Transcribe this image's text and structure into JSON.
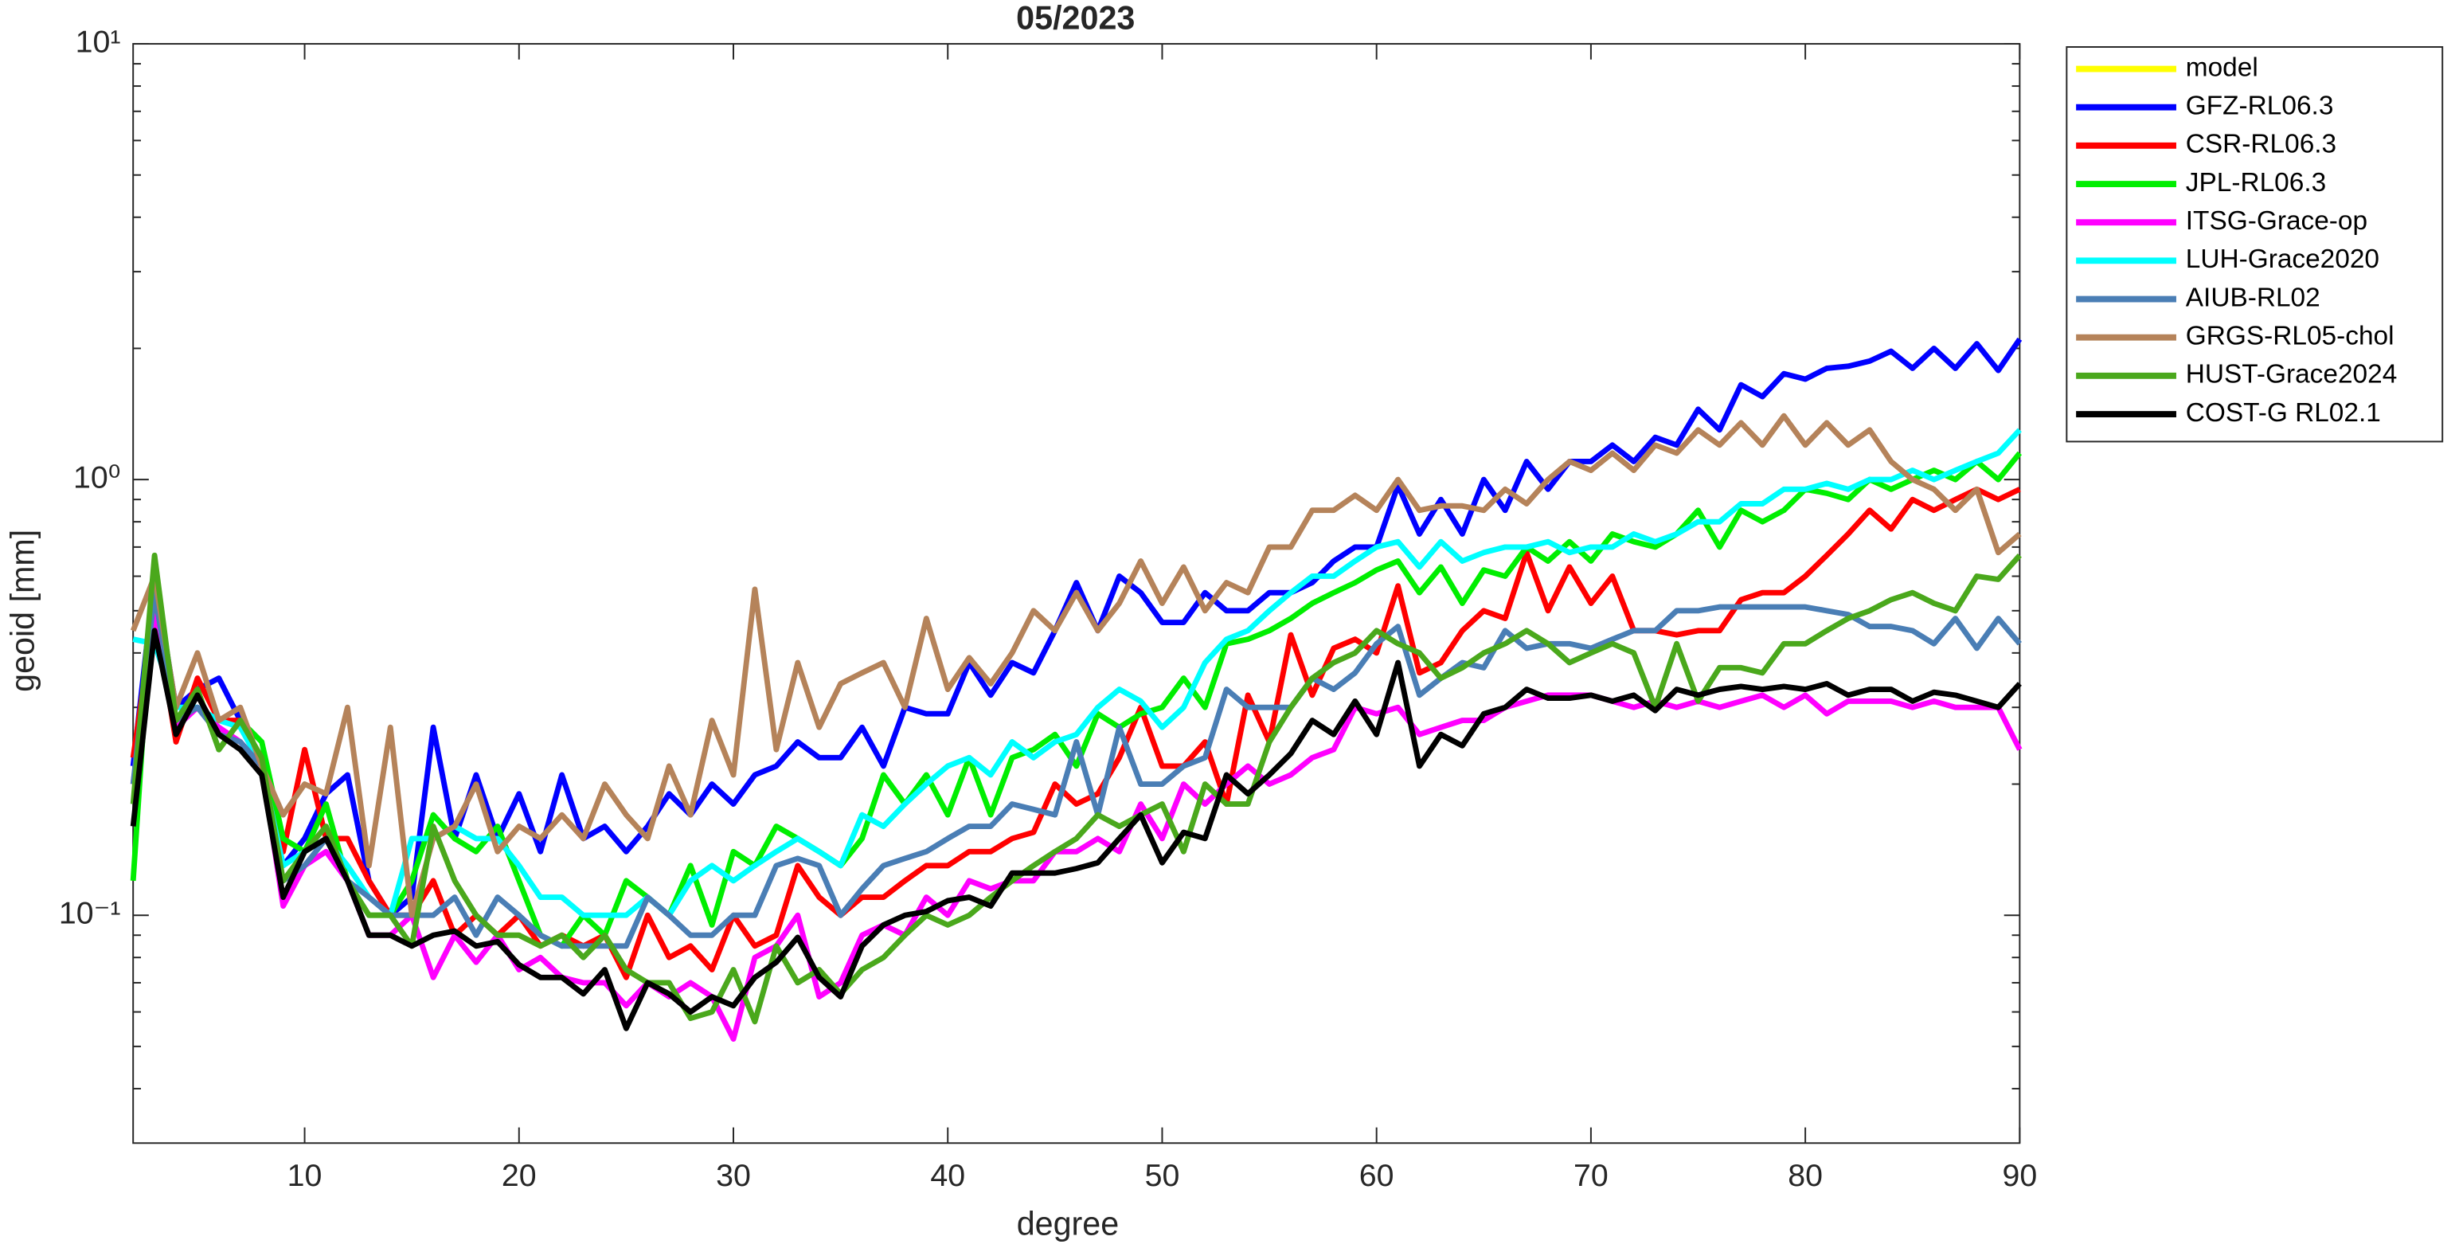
{
  "chart_data": {
    "type": "line",
    "title": "05/2023",
    "xlabel": "degree",
    "ylabel": "geoid [mm]",
    "x": [
      2,
      3,
      4,
      5,
      6,
      7,
      8,
      9,
      10,
      11,
      12,
      13,
      14,
      15,
      16,
      17,
      18,
      19,
      20,
      21,
      22,
      23,
      24,
      25,
      26,
      27,
      28,
      29,
      30,
      31,
      32,
      33,
      34,
      35,
      36,
      37,
      38,
      39,
      40,
      41,
      42,
      43,
      44,
      45,
      46,
      47,
      48,
      49,
      50,
      51,
      52,
      53,
      54,
      55,
      56,
      57,
      58,
      59,
      60,
      61,
      62,
      63,
      64,
      65,
      66,
      67,
      68,
      69,
      70,
      71,
      72,
      73,
      74,
      75,
      76,
      77,
      78,
      79,
      80,
      81,
      82,
      83,
      84,
      85,
      86,
      87,
      88,
      89,
      90
    ],
    "xlim": [
      2,
      90
    ],
    "xticks": [
      10,
      20,
      30,
      40,
      50,
      60,
      70,
      80,
      90
    ],
    "ylim": [
      0.03,
      10
    ],
    "log_y": true,
    "yticks": [
      {
        "value": 0.1,
        "label": "10⁻¹"
      },
      {
        "value": 1,
        "label": "10⁰"
      },
      {
        "value": 10,
        "label": "10¹"
      }
    ],
    "yminorticks": [
      0.04,
      0.05,
      0.06,
      0.07,
      0.08,
      0.09,
      0.2,
      0.3,
      0.4,
      0.5,
      0.6,
      0.7,
      0.8,
      0.9,
      2,
      3,
      4,
      5,
      6,
      7,
      8,
      9
    ],
    "legend": "outside-right",
    "series": [
      {
        "name": "model",
        "color": "#ffff00",
        "values": [
          null,
          null,
          null,
          null,
          null,
          null,
          null,
          null,
          null,
          null,
          null,
          null,
          null,
          null,
          null,
          null,
          null,
          null,
          null,
          null,
          null,
          null,
          null,
          null,
          null,
          null,
          null,
          null,
          null,
          null,
          null,
          null,
          null,
          null,
          null,
          null,
          null,
          null,
          null,
          null,
          null,
          null,
          null,
          null,
          null,
          null,
          null,
          null,
          null,
          null,
          null,
          null,
          null,
          null,
          null,
          null,
          null,
          null,
          null,
          null,
          null,
          null,
          null,
          null,
          null,
          null,
          null,
          null,
          null,
          null,
          null,
          null,
          null,
          null,
          null,
          null,
          null,
          null,
          null,
          null,
          null,
          null,
          null,
          null,
          null,
          null,
          null,
          null,
          null
        ]
      },
      {
        "name": "GFZ-RL06.3",
        "color": "#0000ff",
        "values": [
          0.22,
          0.6,
          0.3,
          0.33,
          0.35,
          0.28,
          0.22,
          0.13,
          0.15,
          0.19,
          0.21,
          0.12,
          0.1,
          0.11,
          0.27,
          0.15,
          0.21,
          0.15,
          0.19,
          0.14,
          0.21,
          0.15,
          0.16,
          0.14,
          0.16,
          0.19,
          0.17,
          0.2,
          0.18,
          0.21,
          0.22,
          0.25,
          0.23,
          0.23,
          0.27,
          0.22,
          0.3,
          0.29,
          0.29,
          0.38,
          0.32,
          0.38,
          0.36,
          0.45,
          0.58,
          0.45,
          0.6,
          0.55,
          0.47,
          0.47,
          0.55,
          0.5,
          0.5,
          0.55,
          0.55,
          0.58,
          0.65,
          0.7,
          0.7,
          0.97,
          0.75,
          0.9,
          0.75,
          1.0,
          0.85,
          1.1,
          0.95,
          1.1,
          1.1,
          1.2,
          1.1,
          1.25,
          1.2,
          1.45,
          1.3,
          1.65,
          1.55,
          1.75,
          1.7,
          1.8,
          1.82,
          1.87,
          1.97,
          1.8,
          2.0,
          1.8,
          2.05,
          1.78,
          2.1
        ]
      },
      {
        "name": "CSR-RL06.3",
        "color": "#ff0000",
        "values": [
          0.23,
          0.5,
          0.25,
          0.35,
          0.28,
          0.28,
          0.22,
          0.14,
          0.24,
          0.15,
          0.15,
          0.12,
          0.1,
          0.1,
          0.12,
          0.09,
          0.1,
          0.09,
          0.1,
          0.085,
          0.09,
          0.085,
          0.09,
          0.072,
          0.1,
          0.08,
          0.085,
          0.075,
          0.1,
          0.085,
          0.09,
          0.13,
          0.11,
          0.1,
          0.11,
          0.11,
          0.12,
          0.13,
          0.13,
          0.14,
          0.14,
          0.15,
          0.155,
          0.2,
          0.18,
          0.19,
          0.23,
          0.3,
          0.22,
          0.22,
          0.25,
          0.18,
          0.32,
          0.25,
          0.44,
          0.32,
          0.41,
          0.43,
          0.4,
          0.57,
          0.36,
          0.38,
          0.45,
          0.5,
          0.48,
          0.68,
          0.5,
          0.63,
          0.52,
          0.6,
          0.45,
          0.45,
          0.44,
          0.45,
          0.45,
          0.53,
          0.55,
          0.55,
          0.6,
          0.67,
          0.75,
          0.85,
          0.77,
          0.9,
          0.85,
          0.9,
          0.95,
          0.9,
          0.95
        ]
      },
      {
        "name": "JPL-RL06.3",
        "color": "#00ee00",
        "values": [
          0.12,
          0.65,
          0.28,
          0.33,
          0.24,
          0.28,
          0.25,
          0.15,
          0.14,
          0.18,
          0.12,
          0.1,
          0.1,
          0.12,
          0.17,
          0.15,
          0.14,
          0.16,
          0.12,
          0.09,
          0.085,
          0.1,
          0.09,
          0.12,
          0.11,
          0.1,
          0.13,
          0.095,
          0.14,
          0.13,
          0.16,
          0.15,
          0.14,
          0.13,
          0.15,
          0.21,
          0.18,
          0.21,
          0.17,
          0.23,
          0.17,
          0.23,
          0.24,
          0.26,
          0.22,
          0.29,
          0.27,
          0.29,
          0.3,
          0.35,
          0.3,
          0.42,
          0.43,
          0.45,
          0.48,
          0.52,
          0.55,
          0.58,
          0.62,
          0.65,
          0.55,
          0.63,
          0.52,
          0.62,
          0.6,
          0.7,
          0.65,
          0.72,
          0.65,
          0.75,
          0.72,
          0.7,
          0.75,
          0.85,
          0.7,
          0.85,
          0.8,
          0.85,
          0.95,
          0.93,
          0.9,
          1.0,
          0.95,
          1.0,
          1.05,
          1.0,
          1.1,
          1.0,
          1.15
        ]
      },
      {
        "name": "ITSG-Grace-op",
        "color": "#ff00ff",
        "values": [
          0.2,
          0.5,
          0.27,
          0.3,
          0.27,
          0.25,
          0.22,
          0.105,
          0.13,
          0.14,
          0.12,
          0.09,
          0.09,
          0.1,
          0.072,
          0.09,
          0.078,
          0.09,
          0.075,
          0.08,
          0.072,
          0.07,
          0.07,
          0.062,
          0.07,
          0.065,
          0.07,
          0.065,
          0.052,
          0.08,
          0.085,
          0.1,
          0.065,
          0.07,
          0.09,
          0.095,
          0.09,
          0.11,
          0.1,
          0.12,
          0.115,
          0.12,
          0.12,
          0.14,
          0.14,
          0.15,
          0.14,
          0.18,
          0.15,
          0.2,
          0.18,
          0.2,
          0.22,
          0.2,
          0.21,
          0.23,
          0.24,
          0.3,
          0.29,
          0.3,
          0.26,
          0.27,
          0.28,
          0.28,
          0.3,
          0.31,
          0.32,
          0.32,
          0.32,
          0.31,
          0.3,
          0.31,
          0.3,
          0.31,
          0.3,
          0.31,
          0.32,
          0.3,
          0.32,
          0.29,
          0.31,
          0.31,
          0.31,
          0.3,
          0.31,
          0.3,
          0.3,
          0.3,
          0.24
        ]
      },
      {
        "name": "LUH-Grace2020",
        "color": "#00ffff",
        "values": [
          0.43,
          0.42,
          0.3,
          0.3,
          0.28,
          0.27,
          0.22,
          0.13,
          0.14,
          0.15,
          0.13,
          0.11,
          0.1,
          0.15,
          0.15,
          0.16,
          0.15,
          0.15,
          0.13,
          0.11,
          0.11,
          0.1,
          0.1,
          0.1,
          0.11,
          0.1,
          0.12,
          0.13,
          0.12,
          0.13,
          0.14,
          0.15,
          0.14,
          0.13,
          0.17,
          0.16,
          0.18,
          0.2,
          0.22,
          0.23,
          0.21,
          0.25,
          0.23,
          0.25,
          0.26,
          0.3,
          0.33,
          0.31,
          0.27,
          0.3,
          0.38,
          0.43,
          0.45,
          0.5,
          0.55,
          0.6,
          0.6,
          0.65,
          0.7,
          0.72,
          0.63,
          0.72,
          0.65,
          0.68,
          0.7,
          0.7,
          0.72,
          0.68,
          0.7,
          0.7,
          0.75,
          0.72,
          0.75,
          0.8,
          0.8,
          0.88,
          0.88,
          0.95,
          0.95,
          0.98,
          0.95,
          1.0,
          1.0,
          1.05,
          1.0,
          1.05,
          1.1,
          1.15,
          1.3
        ]
      },
      {
        "name": "AIUB-RL02",
        "color": "#4a7eb5",
        "values": [
          0.2,
          0.55,
          0.28,
          0.3,
          0.26,
          0.25,
          0.22,
          0.12,
          0.13,
          0.15,
          0.12,
          0.11,
          0.1,
          0.1,
          0.1,
          0.11,
          0.09,
          0.11,
          0.1,
          0.09,
          0.085,
          0.085,
          0.085,
          0.085,
          0.11,
          0.1,
          0.09,
          0.09,
          0.1,
          0.1,
          0.13,
          0.135,
          0.13,
          0.1,
          0.115,
          0.13,
          0.135,
          0.14,
          0.15,
          0.16,
          0.16,
          0.18,
          0.175,
          0.17,
          0.25,
          0.17,
          0.27,
          0.2,
          0.2,
          0.22,
          0.23,
          0.33,
          0.3,
          0.3,
          0.3,
          0.35,
          0.33,
          0.36,
          0.42,
          0.46,
          0.32,
          0.35,
          0.38,
          0.37,
          0.45,
          0.41,
          0.42,
          0.42,
          0.41,
          0.43,
          0.45,
          0.45,
          0.5,
          0.5,
          0.51,
          0.51,
          0.51,
          0.51,
          0.51,
          0.5,
          0.49,
          0.46,
          0.46,
          0.45,
          0.42,
          0.48,
          0.41,
          0.48,
          0.42
        ]
      },
      {
        "name": "GRGS-RL05-chol",
        "color": "#b5835a",
        "values": [
          0.45,
          0.6,
          0.3,
          0.4,
          0.28,
          0.3,
          0.22,
          0.17,
          0.2,
          0.19,
          0.3,
          0.13,
          0.27,
          0.1,
          0.15,
          0.16,
          0.2,
          0.14,
          0.16,
          0.15,
          0.17,
          0.15,
          0.2,
          0.17,
          0.15,
          0.22,
          0.17,
          0.28,
          0.21,
          0.56,
          0.24,
          0.38,
          0.27,
          0.34,
          0.36,
          0.38,
          0.3,
          0.48,
          0.33,
          0.39,
          0.34,
          0.4,
          0.5,
          0.45,
          0.55,
          0.45,
          0.52,
          0.65,
          0.52,
          0.63,
          0.5,
          0.58,
          0.55,
          0.7,
          0.7,
          0.85,
          0.85,
          0.92,
          0.85,
          1.0,
          0.85,
          0.87,
          0.87,
          0.85,
          0.95,
          0.88,
          1.0,
          1.1,
          1.05,
          1.15,
          1.05,
          1.2,
          1.15,
          1.3,
          1.2,
          1.35,
          1.2,
          1.4,
          1.2,
          1.35,
          1.2,
          1.3,
          1.1,
          1.0,
          0.95,
          0.85,
          0.95,
          0.68,
          0.75
        ]
      },
      {
        "name": "HUST-Grace2024",
        "color": "#4aa81c",
        "values": [
          0.18,
          0.67,
          0.28,
          0.33,
          0.24,
          0.28,
          0.23,
          0.12,
          0.14,
          0.16,
          0.12,
          0.1,
          0.1,
          0.085,
          0.16,
          0.12,
          0.1,
          0.09,
          0.09,
          0.085,
          0.09,
          0.08,
          0.09,
          0.075,
          0.07,
          0.07,
          0.058,
          0.06,
          0.075,
          0.057,
          0.085,
          0.07,
          0.075,
          0.066,
          0.075,
          0.08,
          0.09,
          0.1,
          0.095,
          0.1,
          0.11,
          0.12,
          0.13,
          0.14,
          0.15,
          0.17,
          0.16,
          0.17,
          0.18,
          0.14,
          0.2,
          0.18,
          0.18,
          0.25,
          0.3,
          0.35,
          0.38,
          0.4,
          0.45,
          0.42,
          0.4,
          0.35,
          0.37,
          0.4,
          0.42,
          0.45,
          0.42,
          0.38,
          0.4,
          0.42,
          0.4,
          0.3,
          0.42,
          0.31,
          0.37,
          0.37,
          0.36,
          0.42,
          0.42,
          0.45,
          0.48,
          0.5,
          0.53,
          0.55,
          0.52,
          0.5,
          0.6,
          0.59,
          0.67
        ]
      },
      {
        "name": "COST-G RL02.1",
        "color": "#000000",
        "values": [
          0.16,
          0.45,
          0.26,
          0.32,
          0.26,
          0.24,
          0.21,
          0.11,
          0.14,
          0.15,
          0.12,
          0.09,
          0.09,
          0.085,
          0.09,
          0.092,
          0.085,
          0.087,
          0.077,
          0.072,
          0.072,
          0.066,
          0.075,
          0.055,
          0.07,
          0.066,
          0.06,
          0.065,
          0.062,
          0.072,
          0.078,
          0.089,
          0.072,
          0.065,
          0.085,
          0.095,
          0.1,
          0.102,
          0.108,
          0.11,
          0.105,
          0.125,
          0.125,
          0.125,
          0.128,
          0.132,
          0.15,
          0.17,
          0.132,
          0.155,
          0.15,
          0.21,
          0.19,
          0.21,
          0.235,
          0.28,
          0.26,
          0.31,
          0.26,
          0.38,
          0.22,
          0.26,
          0.245,
          0.29,
          0.3,
          0.33,
          0.315,
          0.315,
          0.32,
          0.31,
          0.32,
          0.295,
          0.33,
          0.32,
          0.33,
          0.335,
          0.33,
          0.335,
          0.33,
          0.34,
          0.32,
          0.33,
          0.33,
          0.31,
          0.325,
          0.32,
          0.31,
          0.3,
          0.34
        ]
      }
    ]
  }
}
